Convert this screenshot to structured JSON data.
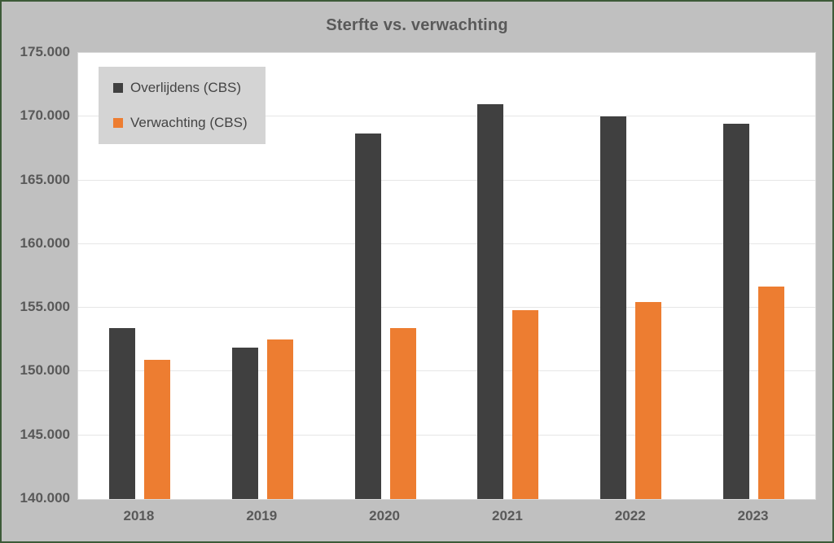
{
  "title": "Sterfte vs. verwachting",
  "colors": {
    "canvas_background": "#c0c0c0",
    "frame_border": "#3c5a38",
    "plot_background": "#ffffff",
    "gridline": "#e6e6e6",
    "axis_text": "#595959",
    "legend_background": "#d4d4d4",
    "legend_text": "#444444",
    "series_dark": "#404040",
    "series_orange": "#ed7d31"
  },
  "chart_data": {
    "type": "bar",
    "title": "Sterfte vs. verwachting",
    "categories": [
      "2018",
      "2019",
      "2020",
      "2021",
      "2022",
      "2023"
    ],
    "series": [
      {
        "name": "Overlijdens (CBS)",
        "color": "#404040",
        "values": [
          153400,
          151900,
          168700,
          170950,
          170050,
          169450
        ]
      },
      {
        "name": "Verwachting (CBS)",
        "color": "#ed7d31",
        "values": [
          150900,
          152500,
          153400,
          154850,
          155450,
          156700
        ]
      }
    ],
    "xlabel": "",
    "ylabel": "",
    "ylim": [
      140000,
      175000
    ],
    "ytick_step": 5000,
    "ytick_labels": [
      "140.000",
      "145.000",
      "150.000",
      "155.000",
      "160.000",
      "165.000",
      "170.000",
      "175.000"
    ],
    "grid": true,
    "legend_position": "top-left"
  }
}
